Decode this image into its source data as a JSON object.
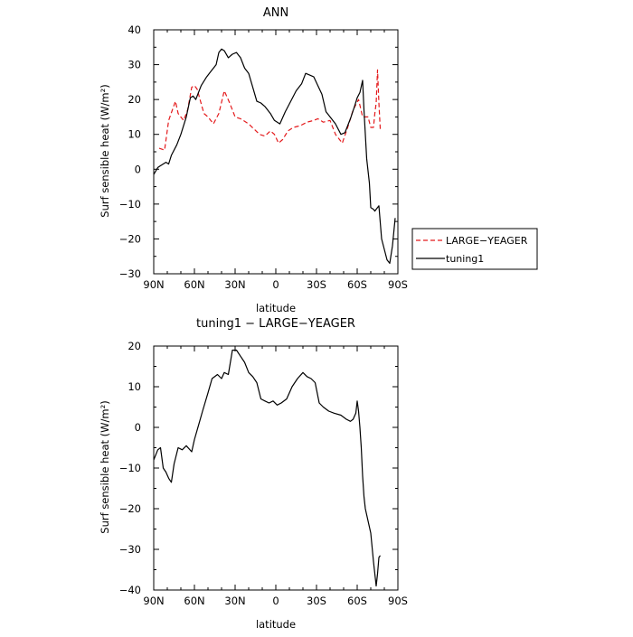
{
  "chart_data": [
    {
      "type": "line",
      "title": "ANN",
      "xlabel": "latitude",
      "ylabel": "Surf sensible heat (W/m²)",
      "ylim": [
        -30,
        40
      ],
      "xlim": [
        90,
        -90
      ],
      "x_ticks": [
        90,
        60,
        30,
        0,
        -30,
        -60,
        -90
      ],
      "x_tick_labels": [
        "90N",
        "60N",
        "30N",
        "0",
        "30S",
        "60S",
        "90S"
      ],
      "y_ticks": [
        -30,
        -20,
        -10,
        0,
        10,
        20,
        30,
        40
      ],
      "y_tick_labels": [
        "−30",
        "−20",
        "−10",
        "0",
        "10",
        "20",
        "30",
        "40"
      ],
      "grid": false,
      "legend_position": "outside-right",
      "series": [
        {
          "name": "LARGE−YEAGER",
          "style": "dashed",
          "color": "#e41a1c",
          "x": [
            86,
            82,
            79,
            74,
            72,
            68,
            65,
            62,
            60,
            58,
            53,
            50,
            46,
            42,
            38,
            34,
            30,
            26,
            20,
            16,
            12,
            8,
            4,
            1,
            -2,
            -5,
            -9,
            -13,
            -18,
            -23,
            -28,
            -31,
            -35,
            -40,
            -44,
            -49,
            -53,
            -57,
            -61,
            -64,
            -66,
            -68,
            -70,
            -72,
            -73,
            -74,
            -75,
            -76,
            -77
          ],
          "y": [
            6,
            5.5,
            14,
            19.5,
            16,
            14,
            17,
            23.5,
            24,
            23,
            16,
            15,
            13,
            16,
            22.5,
            19,
            15,
            14.5,
            13,
            11.5,
            10,
            9.5,
            11,
            10,
            7.5,
            8.5,
            11,
            12,
            12.5,
            13.5,
            14,
            14.5,
            13.5,
            14,
            10,
            7.5,
            12,
            17,
            20,
            15,
            15,
            15,
            12,
            12,
            16,
            19,
            28.5,
            19,
            11.5
          ]
        },
        {
          "name": "tuning1",
          "style": "solid",
          "color": "#000000",
          "x": [
            90,
            87,
            85,
            83,
            81,
            79,
            77,
            73,
            70,
            66,
            63,
            61,
            59,
            55,
            51,
            48,
            44,
            42,
            40,
            38,
            35,
            32,
            29,
            26,
            23,
            20,
            17,
            14,
            11,
            8,
            4,
            1,
            -3,
            -7,
            -11,
            -15,
            -19,
            -22,
            -25,
            -28,
            -31,
            -34,
            -37,
            -40,
            -44,
            -48,
            -51,
            -55,
            -58,
            -60,
            -62,
            -64,
            -65,
            -67,
            -69,
            -70,
            -72,
            -73,
            -74,
            -76,
            -78,
            -80,
            -82,
            -84,
            -86,
            -88
          ],
          "y": [
            -1.5,
            0.5,
            1,
            1.5,
            2,
            1.5,
            4,
            7,
            10,
            15,
            20.5,
            21,
            20,
            24,
            26.5,
            28,
            30,
            33.5,
            34.5,
            34,
            32,
            33,
            33.5,
            32,
            29,
            27.5,
            23.5,
            19.5,
            19,
            18,
            16,
            14,
            13,
            16.5,
            19.5,
            22.5,
            24.5,
            27.5,
            27,
            26.5,
            24,
            21.5,
            16.5,
            15,
            13,
            10,
            10.5,
            14.5,
            18,
            20.5,
            22,
            25.5,
            17,
            3,
            -4,
            -11,
            -11.5,
            -12,
            -11.5,
            -10.5,
            -20,
            -23,
            -26,
            -27,
            -22,
            -14
          ]
        }
      ]
    },
    {
      "type": "line",
      "title": "tuning1 − LARGE−YEAGER",
      "xlabel": "latitude",
      "ylabel": "Surf sensible heat (W/m²)",
      "ylim": [
        -40,
        20
      ],
      "xlim": [
        90,
        -90
      ],
      "x_ticks": [
        90,
        60,
        30,
        0,
        -30,
        -60,
        -90
      ],
      "x_tick_labels": [
        "90N",
        "60N",
        "30N",
        "0",
        "30S",
        "60S",
        "90S"
      ],
      "y_ticks": [
        -40,
        -30,
        -20,
        -10,
        0,
        10,
        20
      ],
      "y_tick_labels": [
        "−40",
        "−30",
        "−20",
        "−10",
        "0",
        "10",
        "20"
      ],
      "grid": false,
      "series": [
        {
          "name": "",
          "style": "solid",
          "color": "#000000",
          "x": [
            90,
            87,
            85,
            83,
            81,
            79,
            77,
            75,
            72,
            69,
            66,
            62,
            60,
            57,
            54,
            50,
            47,
            43,
            40,
            38,
            35,
            32,
            29,
            26,
            23,
            20,
            17,
            14,
            11,
            8,
            5,
            2,
            -1,
            -4,
            -8,
            -12,
            -16,
            -20,
            -23,
            -26,
            -29,
            -32,
            -35,
            -39,
            -43,
            -48,
            -52,
            -55,
            -57,
            -59,
            -60,
            -61,
            -62,
            -63,
            -64,
            -65,
            -66,
            -68,
            -70,
            -72,
            -74,
            -75,
            -76,
            -77
          ],
          "y": [
            -8,
            -5.5,
            -5,
            -10,
            -11,
            -12.5,
            -13.5,
            -9,
            -5,
            -5.5,
            -4.5,
            -6,
            -3,
            0.5,
            4,
            8.5,
            12,
            13,
            12,
            13.5,
            13,
            19,
            19,
            17.5,
            16,
            13.5,
            12.5,
            11,
            7,
            6.5,
            6,
            6.5,
            5.5,
            6,
            7,
            10,
            12,
            13.5,
            12.5,
            12,
            11,
            6,
            5,
            4,
            3.5,
            3,
            2,
            1.5,
            2,
            3.5,
            6.5,
            4,
            0,
            -5,
            -12,
            -17,
            -20,
            -23,
            -26,
            -33,
            -39,
            -36,
            -32,
            -31.5
          ]
        }
      ]
    }
  ]
}
